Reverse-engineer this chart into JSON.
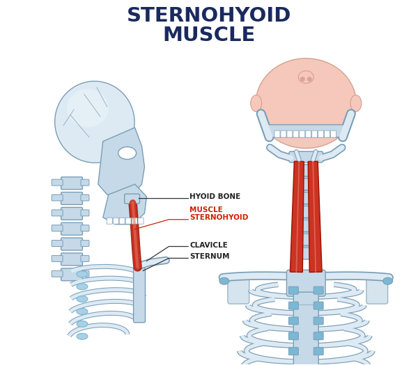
{
  "title_line1": "STERNOHYOID",
  "title_line2": "MUSCLE",
  "title_color": "#1a2a5e",
  "title_fontsize": 21,
  "bg_color": "#ffffff",
  "label_hyoid": "HYOID BONE",
  "label_muscle_1": "STERNOHYOID",
  "label_muscle_2": "MUSCLE",
  "label_clavicle": "CLAVICLE",
  "label_sternum": "STERNUM",
  "label_color_black": "#222222",
  "label_color_red": "#cc2200",
  "bone_fill": "#c5d9e8",
  "bone_fill_light": "#ddeaf4",
  "bone_stroke": "#7a9db5",
  "muscle_fill": "#cc3322",
  "muscle_fill_light": "#e87060",
  "muscle_stroke": "#991100",
  "skin_fill": "#f5c8bb",
  "skin_stroke": "#d4a090",
  "cartilage_fill": "#7ab8d4",
  "cartilage_fill_light": "#a8d0e4"
}
